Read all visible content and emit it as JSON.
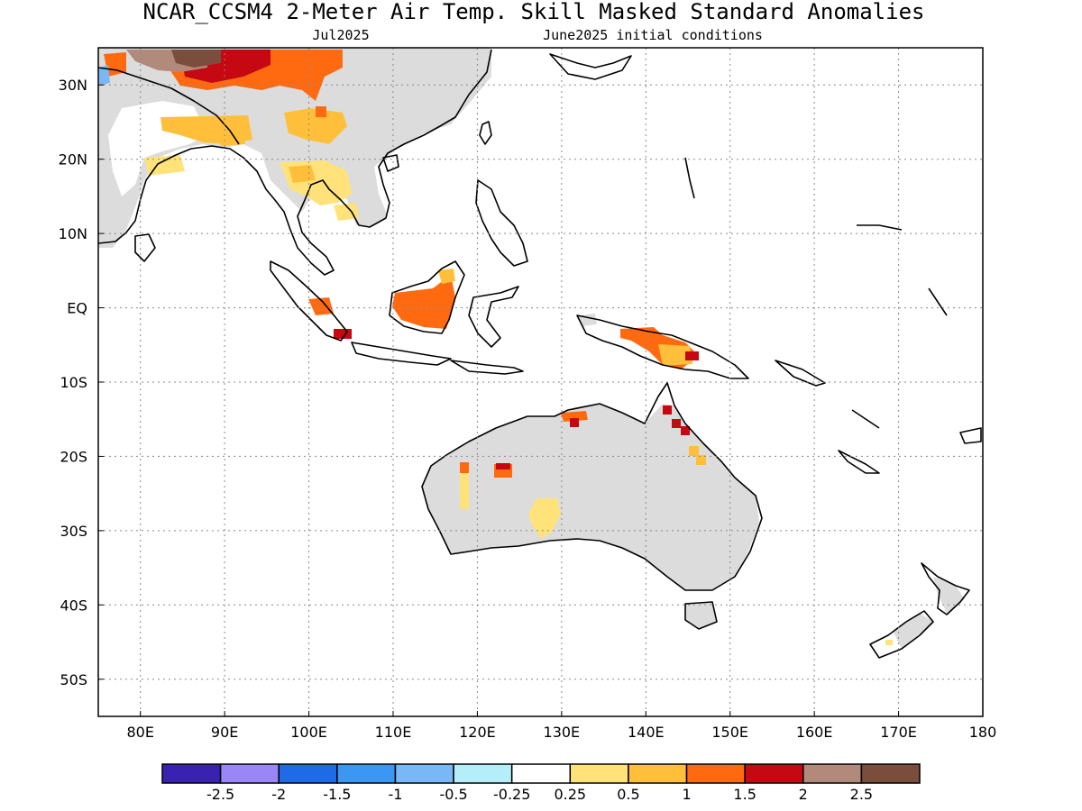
{
  "title": "NCAR_CCSM4 2-Meter Air Temp. Skill Masked Standard Anomalies",
  "subtitle_left": "Jul2025",
  "subtitle_right": "June2025 initial conditions",
  "chart_data": {
    "type": "heatmap",
    "map_extent": {
      "lon": [
        75,
        180
      ],
      "lat": [
        -55,
        35
      ]
    },
    "x_ticks": [
      {
        "lon": 80,
        "label": "80E"
      },
      {
        "lon": 90,
        "label": "90E"
      },
      {
        "lon": 100,
        "label": "100E"
      },
      {
        "lon": 110,
        "label": "110E"
      },
      {
        "lon": 120,
        "label": "120E"
      },
      {
        "lon": 130,
        "label": "130E"
      },
      {
        "lon": 140,
        "label": "140E"
      },
      {
        "lon": 150,
        "label": "150E"
      },
      {
        "lon": 160,
        "label": "160E"
      },
      {
        "lon": 170,
        "label": "170E"
      },
      {
        "lon": 180,
        "label": "180"
      }
    ],
    "y_ticks": [
      {
        "lat": 30,
        "label": "30N"
      },
      {
        "lat": 20,
        "label": "20N"
      },
      {
        "lat": 10,
        "label": "10N"
      },
      {
        "lat": 0,
        "label": "EQ"
      },
      {
        "lat": -10,
        "label": "10S"
      },
      {
        "lat": -20,
        "label": "20S"
      },
      {
        "lat": -30,
        "label": "30S"
      },
      {
        "lat": -40,
        "label": "40S"
      },
      {
        "lat": -50,
        "label": "50S"
      }
    ],
    "grid": true,
    "colorbar": {
      "colors": [
        "#3a22b0",
        "#9a86f5",
        "#1f6ae6",
        "#3c97f2",
        "#79b8f5",
        "#b4eef8",
        "#ffffff",
        "#ffe37a",
        "#ffbf3a",
        "#ff6a10",
        "#c50812",
        "#b28a7c",
        "#7a4d3d"
      ],
      "labels": [
        "-2.5",
        "-2",
        "-1.5",
        "-1",
        "-0.5",
        "-0.25",
        "0.25",
        "0.5",
        "1",
        "1.5",
        "2",
        "2.5"
      ]
    },
    "masked_color": "#dcdcdc",
    "anomaly_regions": [
      {
        "region": "Tibet / western China",
        "value_range": [
          1,
          3
        ]
      },
      {
        "region": "Southern China",
        "value_range": [
          0.5,
          1.5
        ]
      },
      {
        "region": "Northeast India / Bangladesh",
        "value_range": [
          0.5,
          1
        ]
      },
      {
        "region": "Myanmar / Thailand",
        "value_range": [
          0.25,
          1
        ]
      },
      {
        "region": "Borneo",
        "value_range": [
          1,
          1.5
        ]
      },
      {
        "region": "Sumatra / Java",
        "value_range": [
          1,
          2
        ]
      },
      {
        "region": "New Guinea",
        "value_range": [
          0.5,
          2
        ]
      },
      {
        "region": "Northern Australia",
        "value_range": [
          1,
          2
        ]
      },
      {
        "region": "Western Australia",
        "value_range": [
          0.25,
          2
        ]
      },
      {
        "region": "South Australia",
        "value_range": [
          0.25,
          0.5
        ]
      },
      {
        "region": "Queensland coast",
        "value_range": [
          0.5,
          2
        ]
      }
    ]
  }
}
